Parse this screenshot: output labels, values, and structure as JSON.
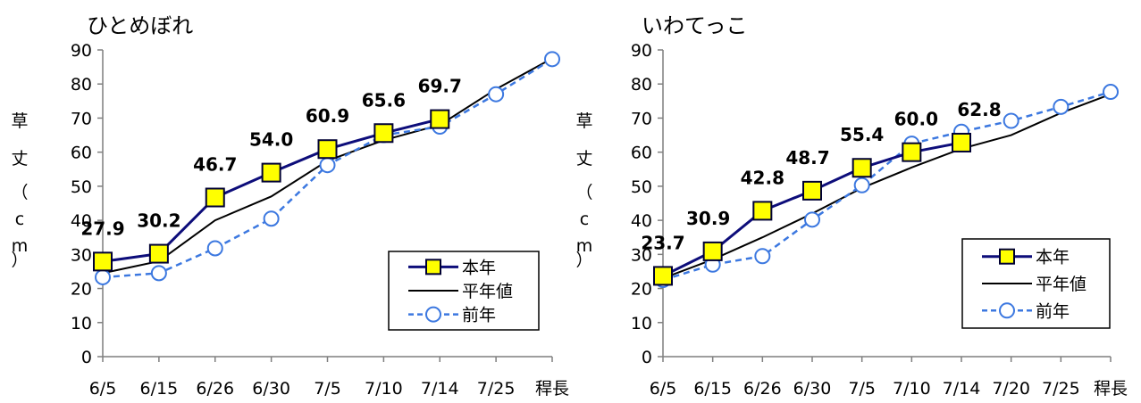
{
  "chart_data": [
    {
      "type": "line",
      "title": "ひとめぼれ",
      "ylabel": [
        "草",
        "丈",
        "（",
        "c",
        "m",
        "）"
      ],
      "ylim": [
        0,
        90
      ],
      "yticks": [
        0,
        10,
        20,
        30,
        40,
        50,
        60,
        70,
        80,
        90
      ],
      "categories": [
        "6/5",
        "6/15",
        "6/26",
        "6/30",
        "7/5",
        "7/10",
        "7/14",
        "7/25",
        "稈長"
      ],
      "series": [
        {
          "name": "本年",
          "color": "#0d0d7a",
          "values": [
            27.9,
            30.2,
            46.7,
            54.0,
            60.9,
            65.6,
            69.7,
            null,
            null
          ]
        },
        {
          "name": "平年値",
          "color": "#000000",
          "values": [
            24.5,
            28.0,
            40.0,
            47.0,
            57.5,
            63.5,
            68.0,
            78.5,
            87.5
          ]
        },
        {
          "name": "前年",
          "color": "#3c78e0",
          "values": [
            23.3,
            24.5,
            31.8,
            40.5,
            56.2,
            65.0,
            67.5,
            77.0,
            87.3
          ]
        }
      ],
      "data_labels": [
        "27.9",
        "30.2",
        "46.7",
        "54.0",
        "60.9",
        "65.6",
        "69.7"
      ],
      "grid": false,
      "legend_position": "bottom-right"
    },
    {
      "type": "line",
      "title": "いわてっこ",
      "ylabel": [
        "草",
        "丈",
        "（",
        "c",
        "m",
        "）"
      ],
      "ylim": [
        0,
        90
      ],
      "yticks": [
        0,
        10,
        20,
        30,
        40,
        50,
        60,
        70,
        80,
        90
      ],
      "categories": [
        "6/5",
        "6/15",
        "6/26",
        "6/30",
        "7/5",
        "7/10",
        "7/14",
        "7/20",
        "7/25",
        "稈長"
      ],
      "series": [
        {
          "name": "本年",
          "color": "#0d0d7a",
          "values": [
            23.7,
            30.9,
            42.8,
            48.7,
            55.4,
            60.0,
            62.8,
            null,
            null,
            null
          ]
        },
        {
          "name": "平年値",
          "color": "#000000",
          "values": [
            23.0,
            28.5,
            35.0,
            42.0,
            49.5,
            55.5,
            61.0,
            65.0,
            71.5,
            77.0
          ]
        },
        {
          "name": "前年",
          "color": "#3c78e0",
          "values": [
            22.5,
            27.0,
            29.5,
            40.2,
            50.3,
            62.5,
            66.0,
            69.2,
            73.3,
            77.7
          ]
        }
      ],
      "data_labels": [
        "23.7",
        "30.9",
        "42.8",
        "48.7",
        "55.4",
        "60.0",
        "62.8"
      ],
      "grid": false,
      "legend_position": "bottom-right"
    }
  ]
}
